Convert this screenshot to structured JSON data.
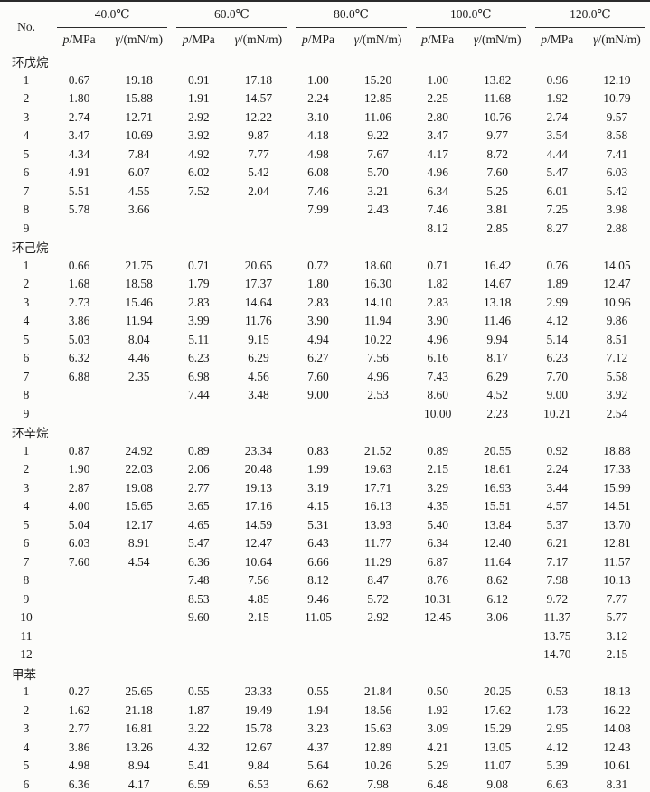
{
  "colors": {
    "text": "#1c1c1c",
    "rule": "#2b2b2b",
    "background": "#fcfcfa"
  },
  "table": {
    "no_header": "No.",
    "temp_groups": [
      {
        "label": "40.0℃"
      },
      {
        "label": "60.0℃"
      },
      {
        "label": "80.0℃"
      },
      {
        "label": "100.0℃"
      },
      {
        "label": "120.0℃"
      }
    ],
    "sub_headers": {
      "p_symbol": "p",
      "p_unit": "/MPa",
      "gamma_symbol": "γ",
      "gamma_unit": "/(mN/m)"
    },
    "sections": [
      {
        "name": "环戊烷",
        "rows": [
          {
            "no": "1",
            "values": [
              "0.67",
              "19.18",
              "0.91",
              "17.18",
              "1.00",
              "15.20",
              "1.00",
              "13.82",
              "0.96",
              "12.19"
            ]
          },
          {
            "no": "2",
            "values": [
              "1.80",
              "15.88",
              "1.91",
              "14.57",
              "2.24",
              "12.85",
              "2.25",
              "11.68",
              "1.92",
              "10.79"
            ]
          },
          {
            "no": "3",
            "values": [
              "2.74",
              "12.71",
              "2.92",
              "12.22",
              "3.10",
              "11.06",
              "2.80",
              "10.76",
              "2.74",
              "9.57"
            ]
          },
          {
            "no": "4",
            "values": [
              "3.47",
              "10.69",
              "3.92",
              "9.87",
              "4.18",
              "9.22",
              "3.47",
              "9.77",
              "3.54",
              "8.58"
            ]
          },
          {
            "no": "5",
            "values": [
              "4.34",
              "7.84",
              "4.92",
              "7.77",
              "4.98",
              "7.67",
              "4.17",
              "8.72",
              "4.44",
              "7.41"
            ]
          },
          {
            "no": "6",
            "values": [
              "4.91",
              "6.07",
              "6.02",
              "5.42",
              "6.08",
              "5.70",
              "4.96",
              "7.60",
              "5.47",
              "6.03"
            ]
          },
          {
            "no": "7",
            "values": [
              "5.51",
              "4.55",
              "7.52",
              "2.04",
              "7.46",
              "3.21",
              "6.34",
              "5.25",
              "6.01",
              "5.42"
            ]
          },
          {
            "no": "8",
            "values": [
              "5.78",
              "3.66",
              "",
              "",
              "7.99",
              "2.43",
              "7.46",
              "3.81",
              "7.25",
              "3.98"
            ]
          },
          {
            "no": "9",
            "values": [
              "",
              "",
              "",
              "",
              "",
              "",
              "8.12",
              "2.85",
              "8.27",
              "2.88"
            ]
          }
        ]
      },
      {
        "name": "环己烷",
        "rows": [
          {
            "no": "1",
            "values": [
              "0.66",
              "21.75",
              "0.71",
              "20.65",
              "0.72",
              "18.60",
              "0.71",
              "16.42",
              "0.76",
              "14.05"
            ]
          },
          {
            "no": "2",
            "values": [
              "1.68",
              "18.58",
              "1.79",
              "17.37",
              "1.80",
              "16.30",
              "1.82",
              "14.67",
              "1.89",
              "12.47"
            ]
          },
          {
            "no": "3",
            "values": [
              "2.73",
              "15.46",
              "2.83",
              "14.64",
              "2.83",
              "14.10",
              "2.83",
              "13.18",
              "2.99",
              "10.96"
            ]
          },
          {
            "no": "4",
            "values": [
              "3.86",
              "11.94",
              "3.99",
              "11.76",
              "3.90",
              "11.94",
              "3.90",
              "11.46",
              "4.12",
              "9.86"
            ]
          },
          {
            "no": "5",
            "values": [
              "5.03",
              "8.04",
              "5.11",
              "9.15",
              "4.94",
              "10.22",
              "4.96",
              "9.94",
              "5.14",
              "8.51"
            ]
          },
          {
            "no": "6",
            "values": [
              "6.32",
              "4.46",
              "6.23",
              "6.29",
              "6.27",
              "7.56",
              "6.16",
              "8.17",
              "6.23",
              "7.12"
            ]
          },
          {
            "no": "7",
            "values": [
              "6.88",
              "2.35",
              "6.98",
              "4.56",
              "7.60",
              "4.96",
              "7.43",
              "6.29",
              "7.70",
              "5.58"
            ]
          },
          {
            "no": "8",
            "values": [
              "",
              "",
              "7.44",
              "3.48",
              "9.00",
              "2.53",
              "8.60",
              "4.52",
              "9.00",
              "3.92"
            ]
          },
          {
            "no": "9",
            "values": [
              "",
              "",
              "",
              "",
              "",
              "",
              "10.00",
              "2.23",
              "10.21",
              "2.54"
            ]
          }
        ]
      },
      {
        "name": "环辛烷",
        "rows": [
          {
            "no": "1",
            "values": [
              "0.87",
              "24.92",
              "0.89",
              "23.34",
              "0.83",
              "21.52",
              "0.89",
              "20.55",
              "0.92",
              "18.88"
            ]
          },
          {
            "no": "2",
            "values": [
              "1.90",
              "22.03",
              "2.06",
              "20.48",
              "1.99",
              "19.63",
              "2.15",
              "18.61",
              "2.24",
              "17.33"
            ]
          },
          {
            "no": "3",
            "values": [
              "2.87",
              "19.08",
              "2.77",
              "19.13",
              "3.19",
              "17.71",
              "3.29",
              "16.93",
              "3.44",
              "15.99"
            ]
          },
          {
            "no": "4",
            "values": [
              "4.00",
              "15.65",
              "3.65",
              "17.16",
              "4.15",
              "16.13",
              "4.35",
              "15.51",
              "4.57",
              "14.51"
            ]
          },
          {
            "no": "5",
            "values": [
              "5.04",
              "12.17",
              "4.65",
              "14.59",
              "5.31",
              "13.93",
              "5.40",
              "13.84",
              "5.37",
              "13.70"
            ]
          },
          {
            "no": "6",
            "values": [
              "6.03",
              "8.91",
              "5.47",
              "12.47",
              "6.43",
              "11.77",
              "6.34",
              "12.40",
              "6.21",
              "12.81"
            ]
          },
          {
            "no": "7",
            "values": [
              "7.60",
              "4.54",
              "6.36",
              "10.64",
              "6.66",
              "11.29",
              "6.87",
              "11.64",
              "7.17",
              "11.57"
            ]
          },
          {
            "no": "8",
            "values": [
              "",
              "",
              "7.48",
              "7.56",
              "8.12",
              "8.47",
              "8.76",
              "8.62",
              "7.98",
              "10.13"
            ]
          },
          {
            "no": "9",
            "values": [
              "",
              "",
              "8.53",
              "4.85",
              "9.46",
              "5.72",
              "10.31",
              "6.12",
              "9.72",
              "7.77"
            ]
          },
          {
            "no": "10",
            "values": [
              "",
              "",
              "9.60",
              "2.15",
              "11.05",
              "2.92",
              "12.45",
              "3.06",
              "11.37",
              "5.77"
            ]
          },
          {
            "no": "11",
            "values": [
              "",
              "",
              "",
              "",
              "",
              "",
              "",
              "",
              "13.75",
              "3.12"
            ]
          },
          {
            "no": "12",
            "values": [
              "",
              "",
              "",
              "",
              "",
              "",
              "",
              "",
              "14.70",
              "2.15"
            ]
          }
        ]
      },
      {
        "name": "甲苯",
        "rows": [
          {
            "no": "1",
            "values": [
              "0.27",
              "25.65",
              "0.55",
              "23.33",
              "0.55",
              "21.84",
              "0.50",
              "20.25",
              "0.53",
              "18.13"
            ]
          },
          {
            "no": "2",
            "values": [
              "1.62",
              "21.18",
              "1.87",
              "19.49",
              "1.94",
              "18.56",
              "1.92",
              "17.62",
              "1.73",
              "16.22"
            ]
          },
          {
            "no": "3",
            "values": [
              "2.77",
              "16.81",
              "3.22",
              "15.78",
              "3.23",
              "15.63",
              "3.09",
              "15.29",
              "2.95",
              "14.08"
            ]
          },
          {
            "no": "4",
            "values": [
              "3.86",
              "13.26",
              "4.32",
              "12.67",
              "4.37",
              "12.89",
              "4.21",
              "13.05",
              "4.12",
              "12.43"
            ]
          },
          {
            "no": "5",
            "values": [
              "4.98",
              "8.94",
              "5.41",
              "9.84",
              "5.64",
              "10.26",
              "5.29",
              "11.07",
              "5.39",
              "10.61"
            ]
          },
          {
            "no": "6",
            "values": [
              "6.36",
              "4.17",
              "6.59",
              "6.53",
              "6.62",
              "7.98",
              "6.48",
              "9.08",
              "6.63",
              "8.31"
            ]
          }
        ]
      }
    ]
  }
}
